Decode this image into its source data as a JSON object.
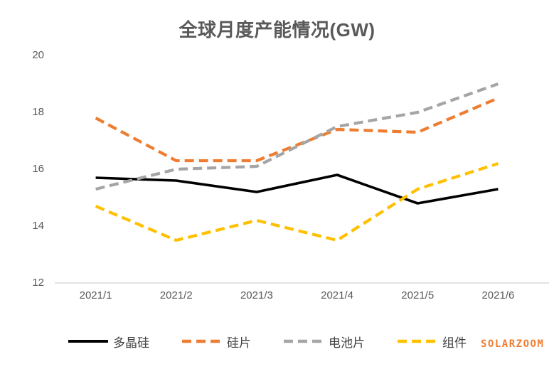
{
  "title": "全球月度产能情况(GW)",
  "watermark": "SOLARZOOM",
  "colors": {
    "title_text": "#595959",
    "axis_text": "#595959",
    "axis_line": "#D9D9D9",
    "legend_text": "#404040",
    "watermark_text": "#ED7D31"
  },
  "chart_data": {
    "type": "line",
    "title": "全球月度产能情况(GW)",
    "x": [
      "2021/1",
      "2021/2",
      "2021/3",
      "2021/4",
      "2021/5",
      "2021/6"
    ],
    "series": [
      {
        "name": "多晶硅",
        "color": "#000000",
        "dash": "solid",
        "values": [
          15.7,
          15.6,
          15.2,
          15.8,
          14.8,
          15.3
        ]
      },
      {
        "name": "硅片",
        "color": "#ED7D31",
        "dash": "dashed",
        "values": [
          17.8,
          16.3,
          16.3,
          17.4,
          17.3,
          18.5
        ]
      },
      {
        "name": "电池片",
        "color": "#A5A5A5",
        "dash": "dashed",
        "values": [
          15.3,
          16.0,
          16.1,
          17.5,
          18.0,
          19.0
        ]
      },
      {
        "name": "组件",
        "color": "#FFC000",
        "dash": "dashed",
        "values": [
          14.7,
          13.5,
          14.2,
          13.5,
          15.3,
          16.2
        ]
      }
    ],
    "ylim": [
      12,
      20
    ],
    "y_ticks": [
      20,
      18,
      16,
      14,
      12
    ],
    "xlabel": "",
    "ylabel": "",
    "grid": false,
    "legend_position": "bottom"
  }
}
